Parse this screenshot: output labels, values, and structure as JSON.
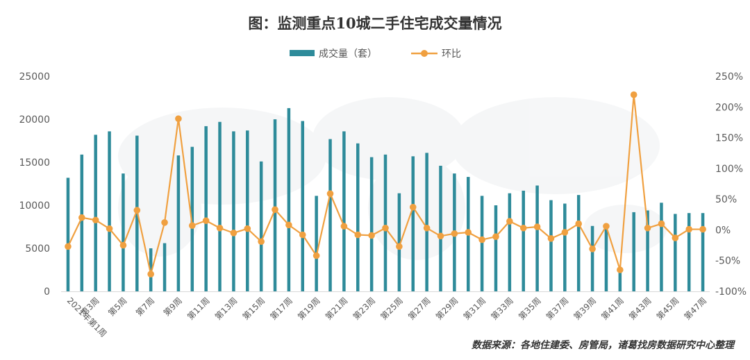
{
  "chart_data": {
    "type": "bar+line",
    "title": "图：监测重点10城二手住宅成交量情况",
    "source": "数据来源：各地住建委、房管局，诸葛找房数据研究中心整理",
    "legend_position": "top",
    "colors": {
      "bar": "#2e8b9a",
      "line": "#f0a040"
    },
    "series": [
      {
        "name": "成交量（套）",
        "axis": "left",
        "type": "bar",
        "values": [
          13200,
          15900,
          18200,
          18600,
          13700,
          18100,
          5000,
          5600,
          15800,
          16800,
          19200,
          19700,
          18600,
          18700,
          15100,
          20000,
          21300,
          19800,
          11100,
          17700,
          18600,
          17200,
          15600,
          15900,
          11400,
          15700,
          16100,
          14600,
          13700,
          13300,
          11100,
          10000,
          11400,
          11700,
          12300,
          10600,
          10200,
          11200,
          7600,
          7900,
          2700,
          9200,
          9400,
          10300,
          9000,
          9100,
          9100
        ]
      },
      {
        "name": "环比",
        "axis": "right",
        "type": "line",
        "values": [
          -27,
          20,
          16,
          2,
          -25,
          32,
          -72,
          12,
          181,
          7,
          15,
          3,
          -5,
          2,
          -19,
          33,
          8,
          -8,
          -42,
          59,
          6,
          -8,
          -9,
          3,
          -27,
          37,
          3,
          -10,
          -6,
          -4,
          -16,
          -11,
          14,
          3,
          5,
          -14,
          -4,
          10,
          -31,
          6,
          -65,
          220,
          3,
          10,
          -13,
          1,
          1
        ]
      }
    ],
    "x_tick_labels": [
      "2021年第1周",
      "第3周",
      "第5周",
      "第7周",
      "第9周",
      "第11周",
      "第13周",
      "第15周",
      "第17周",
      "第19周",
      "第21周",
      "第23周",
      "第25周",
      "第27周",
      "第29周",
      "第31周",
      "第33周",
      "第35周",
      "第37周",
      "第39周",
      "第41周",
      "第43周",
      "第45周",
      "第47周"
    ],
    "y_left": {
      "min": 0,
      "max": 25000,
      "step": 5000,
      "ticks": [
        "0",
        "5000",
        "10000",
        "15000",
        "20000",
        "25000"
      ]
    },
    "y_right": {
      "min": -100,
      "max": 250,
      "step": 50,
      "ticks": [
        "-100%",
        "-50%",
        "0%",
        "50%",
        "100%",
        "150%",
        "200%",
        "250%"
      ]
    }
  }
}
